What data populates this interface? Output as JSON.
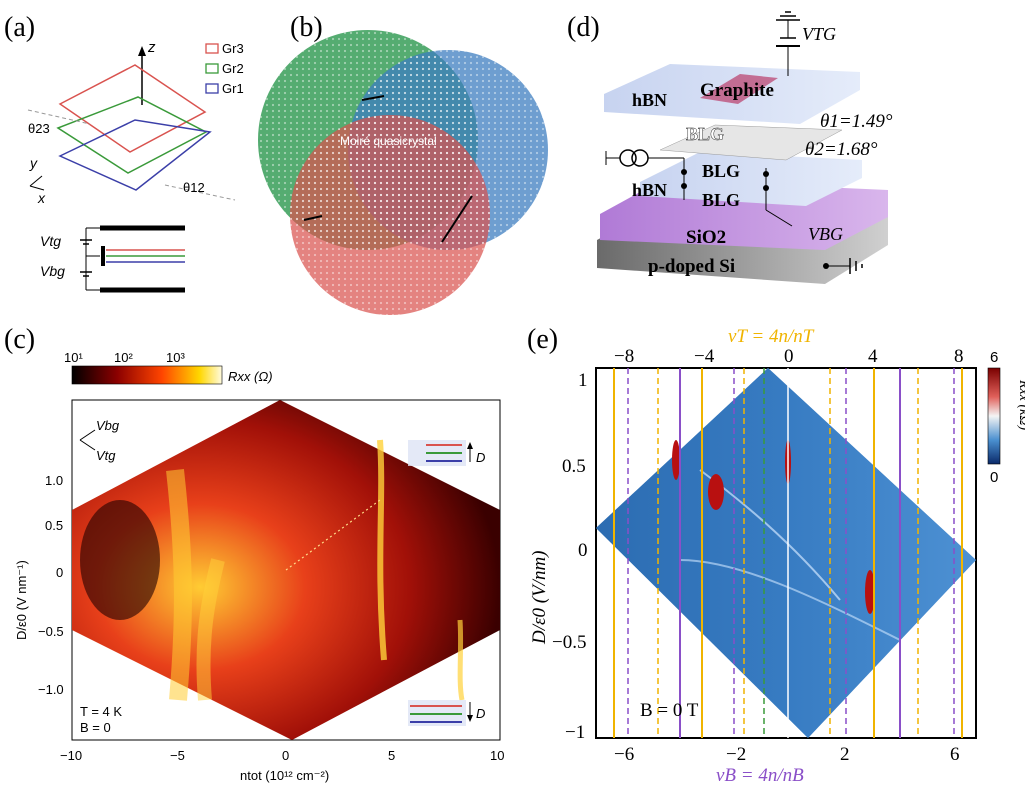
{
  "panels": {
    "a": {
      "label": "(a)",
      "axis_z": "z",
      "axis_y": "y",
      "axis_x": "x",
      "theta23": "θ23",
      "theta12": "θ12",
      "legend": [
        {
          "name": "Gr3",
          "color": "#d9534f"
        },
        {
          "name": "Gr2",
          "color": "#3a9a3a"
        },
        {
          "name": "Gr1",
          "color": "#3b3fa8"
        }
      ],
      "vtg": "Vtg",
      "vbg": "Vbg"
    },
    "b": {
      "label": "(b)",
      "center_text": "Moiré quasicrystal",
      "colors": {
        "green": "#2f9a52",
        "blue": "#3d7ec0",
        "red": "#d9534f"
      }
    },
    "c": {
      "label": "(c)",
      "colorbar_ticks": [
        "10¹",
        "10²",
        "10³"
      ],
      "colorbar_label": "Rxx (Ω)",
      "xlabel": "ntot (10¹² cm⁻²)",
      "ylabel": "D/ε0 (V nm⁻¹)",
      "xticks": [
        "−10",
        "−5",
        "0",
        "5",
        "10"
      ],
      "yticks": [
        "1.0",
        "0.5",
        "0",
        "−0.5",
        "−1.0"
      ],
      "vbg_arrow": "Vbg",
      "vtg_arrow": "Vtg",
      "temp": "T = 4 K",
      "field": "B =  0",
      "d_label": "D"
    },
    "d": {
      "label": "(d)",
      "vtg": "VTG",
      "graphite": "Graphite",
      "hbn_top": "hBN",
      "blg_1": "BLG",
      "theta1": "θ1=1.49°",
      "theta2": "θ2=1.68°",
      "blg_2": "BLG",
      "blg_3": "BLG",
      "hbn_bottom": "hBN",
      "sio2": "SiO2",
      "vbg": "VBG",
      "si": "p-doped Si"
    },
    "e": {
      "label": "(e)",
      "top_axis_label": "νT = 4n/nT",
      "bottom_axis_label": "νB = 4n/nB",
      "top_ticks": [
        "−8",
        "−4",
        "0",
        "4",
        "8"
      ],
      "bottom_ticks": [
        "−6",
        "−2",
        "2",
        "6"
      ],
      "yticks": [
        "1",
        "0.5",
        "0",
        "−0.5",
        "−1"
      ],
      "ylabel": "D/ε0 (V/nm)",
      "colorbar_ticks": [
        "6",
        "0"
      ],
      "colorbar_label": "Rxx (kΩ)",
      "field": "B = 0 T",
      "colors": {
        "top": "#f0b400",
        "bottom": "#8a4fc8"
      }
    }
  }
}
